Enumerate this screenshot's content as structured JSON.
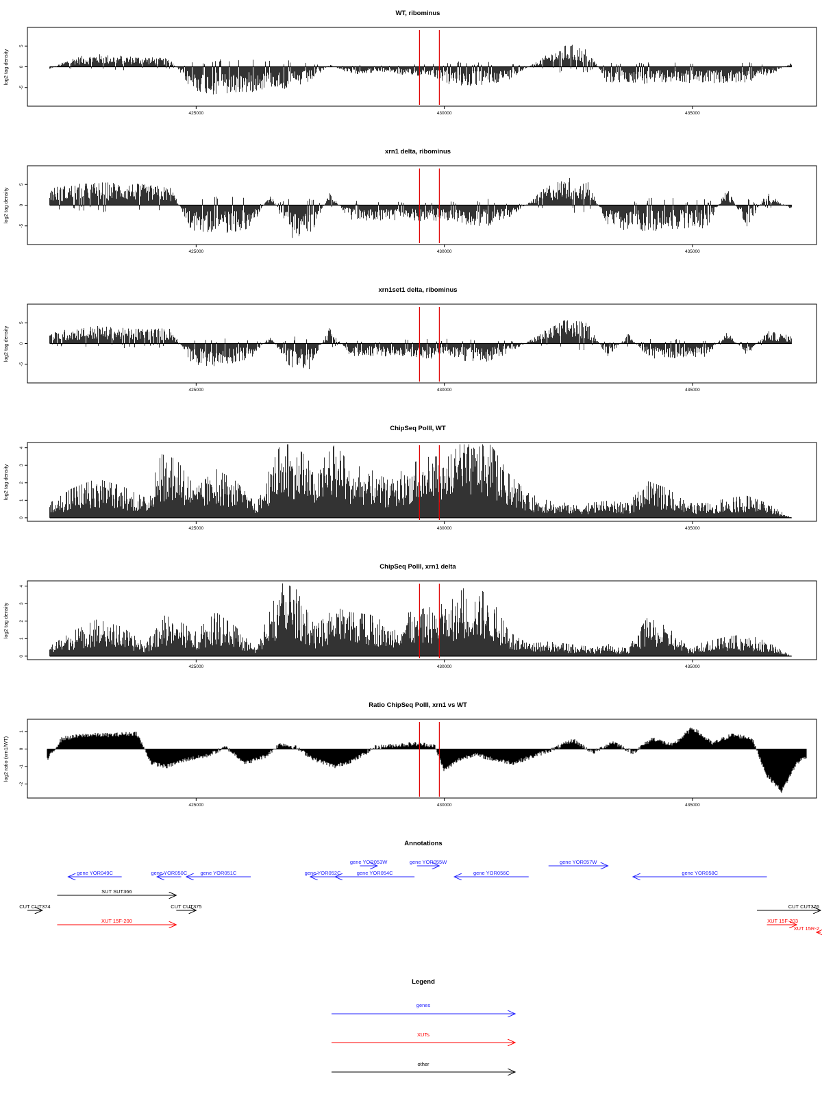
{
  "chart_data": [
    {
      "type": "bar",
      "title": "WT, ribominus",
      "ylabel": "log2 tag density",
      "ylim": [
        -9.5,
        9.5
      ],
      "yticks": [
        -5,
        0,
        5
      ],
      "xlim": [
        421600,
        437500
      ],
      "xticks": [
        425000,
        430000,
        435000
      ],
      "x_tick_labels": [
        "425000",
        "430000",
        "435000"
      ],
      "markers_x": [
        429500,
        429900
      ],
      "marker_color": "#e00000",
      "series": [
        {
          "x": [
            422050,
            422500,
            423000,
            423500,
            424000,
            424500,
            424900,
            425300,
            425700,
            426100,
            426500,
            426900,
            427300,
            427700,
            428100,
            428500,
            428900,
            429300,
            429700,
            430100,
            430500,
            430900,
            431300,
            431700,
            432100,
            432500,
            432900,
            433300,
            433700,
            434100,
            434500,
            434900,
            435300,
            435700,
            436100,
            436500,
            437000
          ],
          "values": [
            -0.5,
            1.8,
            2.5,
            2.2,
            2.0,
            1.5,
            -4.5,
            -5.5,
            -5.5,
            -5.0,
            -4.0,
            -4.5,
            -3.0,
            0.5,
            -1.5,
            -1.2,
            -1.0,
            -2.0,
            -1.5,
            -3.5,
            -4.0,
            -3.5,
            -2.5,
            0.0,
            2.5,
            4.5,
            3.5,
            -3.5,
            -3.0,
            -3.5,
            -3.0,
            -3.2,
            -3.0,
            -3.5,
            -3.0,
            -2.0,
            0.8
          ]
        }
      ]
    },
    {
      "type": "bar",
      "title": "xrn1 delta, ribominus",
      "ylabel": "log2 tag density",
      "ylim": [
        -9.5,
        9.5
      ],
      "yticks": [
        -5,
        0,
        5
      ],
      "xlim": [
        421600,
        437500
      ],
      "xticks": [
        425000,
        430000,
        435000
      ],
      "x_tick_labels": [
        "425000",
        "430000",
        "435000"
      ],
      "markers_x": [
        429500,
        429900
      ],
      "marker_color": "#e00000",
      "series": [
        {
          "x": [
            422050,
            422500,
            423000,
            423500,
            424000,
            424500,
            424900,
            425300,
            425700,
            426100,
            426500,
            426900,
            427300,
            427700,
            428100,
            428500,
            428900,
            429300,
            429700,
            430100,
            430500,
            430900,
            431300,
            431700,
            432100,
            432500,
            432900,
            433300,
            433700,
            434100,
            434500,
            434900,
            435300,
            435700,
            436100,
            436500,
            437000
          ],
          "values": [
            3.5,
            4.0,
            4.5,
            4.5,
            4.0,
            3.5,
            -5.0,
            -5.5,
            -5.5,
            -4.5,
            2.5,
            -6.5,
            -6.0,
            2.5,
            -3.0,
            -3.0,
            -3.0,
            -3.0,
            -3.2,
            -3.0,
            -4.0,
            -4.0,
            -2.5,
            0.5,
            4.0,
            5.5,
            4.5,
            -4.5,
            -5.0,
            -5.0,
            -5.0,
            -4.5,
            -4.5,
            3.5,
            -4.5,
            2.5,
            -1.0
          ]
        }
      ]
    },
    {
      "type": "bar",
      "title": "xrn1set1 delta, ribominus",
      "ylabel": "log2 tag density",
      "ylim": [
        -9.5,
        9.5
      ],
      "yticks": [
        -5,
        0,
        5
      ],
      "xlim": [
        421600,
        437500
      ],
      "xticks": [
        425000,
        430000,
        435000
      ],
      "x_tick_labels": [
        "425000",
        "430000",
        "435000"
      ],
      "markers_x": [
        429500,
        429900
      ],
      "marker_color": "#e00000",
      "series": [
        {
          "x": [
            422050,
            422500,
            423000,
            423500,
            424000,
            424500,
            424900,
            425300,
            425700,
            426100,
            426500,
            426900,
            427300,
            427700,
            428100,
            428500,
            428900,
            429300,
            429700,
            430100,
            430500,
            430900,
            431300,
            431700,
            432100,
            432500,
            432900,
            433300,
            433700,
            434100,
            434500,
            434900,
            435300,
            435700,
            436100,
            436500,
            437000
          ],
          "values": [
            2.0,
            3.0,
            3.5,
            3.0,
            3.0,
            3.0,
            -4.0,
            -4.5,
            -4.0,
            -3.0,
            1.5,
            -5.0,
            -5.0,
            3.5,
            -2.5,
            -2.5,
            -2.5,
            -2.5,
            -3.0,
            -3.0,
            -3.5,
            -3.5,
            -2.0,
            0.5,
            3.0,
            5.0,
            4.0,
            -3.0,
            2.0,
            -3.0,
            -3.0,
            -3.0,
            -2.5,
            2.5,
            -2.5,
            2.5,
            1.5
          ]
        }
      ]
    },
    {
      "type": "bar",
      "title": "ChipSeq PolII, WT",
      "ylabel": "log2 tag density",
      "ylim": [
        -0.2,
        4.3
      ],
      "yticks": [
        0,
        1,
        2,
        3,
        4
      ],
      "xlim": [
        421600,
        437500
      ],
      "xticks": [
        425000,
        430000,
        435000
      ],
      "x_tick_labels": [
        "425000",
        "430000",
        "435000"
      ],
      "markers_x": [
        429500,
        429900
      ],
      "marker_color": "#e00000",
      "series": [
        {
          "x": [
            422050,
            422500,
            423000,
            423500,
            424000,
            424300,
            424600,
            425000,
            425400,
            425800,
            426200,
            426700,
            427000,
            427400,
            427800,
            428100,
            428500,
            428900,
            429300,
            429700,
            430100,
            430400,
            430700,
            431000,
            431300,
            431700,
            432100,
            432500,
            432900,
            433300,
            433700,
            434100,
            434500,
            434900,
            435300,
            435700,
            436100,
            436500,
            437000
          ],
          "values": [
            0.6,
            1.2,
            1.6,
            1.3,
            0.8,
            2.6,
            2.4,
            1.2,
            2.0,
            1.5,
            0.6,
            3.0,
            3.0,
            2.0,
            3.0,
            2.2,
            2.0,
            1.5,
            2.2,
            2.5,
            2.5,
            3.2,
            3.5,
            2.8,
            1.8,
            1.0,
            0.7,
            0.6,
            0.6,
            0.7,
            0.6,
            1.5,
            1.2,
            0.6,
            0.6,
            0.8,
            0.9,
            0.6,
            0.0
          ]
        }
      ]
    },
    {
      "type": "bar",
      "title": "ChipSeq PolII, xrn1 delta",
      "ylabel": "log2 tag density",
      "ylim": [
        -0.2,
        4.3
      ],
      "yticks": [
        0,
        1,
        2,
        3,
        4
      ],
      "xlim": [
        421600,
        437500
      ],
      "xticks": [
        425000,
        430000,
        435000
      ],
      "x_tick_labels": [
        "425000",
        "430000",
        "435000"
      ],
      "markers_x": [
        429500,
        429900
      ],
      "marker_color": "#e00000",
      "series": [
        {
          "x": [
            422050,
            422500,
            423000,
            423500,
            424000,
            424300,
            424600,
            425000,
            425400,
            425800,
            426200,
            426700,
            427000,
            427400,
            427800,
            428100,
            428500,
            428900,
            429300,
            429700,
            430100,
            430400,
            430700,
            431000,
            431300,
            431700,
            432100,
            432500,
            432900,
            433300,
            433700,
            434100,
            434500,
            434900,
            435300,
            435700,
            436100,
            436500,
            437000
          ],
          "values": [
            0.4,
            1.0,
            1.5,
            1.2,
            0.5,
            1.7,
            1.5,
            1.0,
            1.8,
            1.2,
            0.3,
            3.0,
            2.8,
            1.2,
            2.0,
            1.8,
            1.7,
            1.3,
            1.8,
            2.0,
            2.2,
            2.8,
            2.8,
            2.2,
            1.0,
            0.5,
            0.6,
            0.5,
            0.4,
            0.5,
            0.3,
            1.6,
            1.2,
            0.4,
            0.6,
            0.8,
            0.9,
            0.6,
            0.0
          ]
        }
      ]
    },
    {
      "type": "area",
      "title": "Ratio ChipSeq PolII, xrn1 vs WT",
      "ylabel": "log2 ratio (xrn1/WT)",
      "ylim": [
        -2.8,
        1.7
      ],
      "yticks": [
        -2,
        -1,
        0,
        1
      ],
      "xlim": [
        421600,
        437500
      ],
      "xticks": [
        425000,
        430000,
        435000
      ],
      "x_tick_labels": [
        "425000",
        "430000",
        "435000"
      ],
      "markers_x": [
        429500,
        429900
      ],
      "marker_color": "#e00000",
      "series": [
        {
          "x": [
            422000,
            422300,
            422800,
            423300,
            423800,
            424100,
            424400,
            424800,
            425200,
            425600,
            426000,
            426400,
            426700,
            427000,
            427400,
            427800,
            428200,
            428600,
            429000,
            429400,
            429800,
            430000,
            430300,
            430600,
            431000,
            431400,
            431800,
            432200,
            432600,
            433000,
            433400,
            433800,
            434200,
            434600,
            435000,
            435400,
            435800,
            436200,
            436500,
            436800,
            437100,
            437300
          ],
          "values": [
            -0.6,
            0.6,
            0.8,
            0.8,
            0.9,
            -0.8,
            -1.0,
            -0.6,
            -0.4,
            0.1,
            -0.8,
            -0.4,
            0.3,
            0.1,
            -0.6,
            -1.0,
            -0.6,
            0.1,
            0.2,
            0.3,
            0.2,
            -1.2,
            -0.6,
            -0.3,
            -0.6,
            -0.8,
            -0.4,
            0.0,
            0.5,
            -0.2,
            0.4,
            -0.2,
            0.6,
            0.2,
            1.2,
            0.3,
            0.8,
            0.6,
            -1.5,
            -2.4,
            -0.8,
            -0.4
          ]
        }
      ]
    },
    {
      "type": "annotation",
      "title": "Annotations",
      "features": [
        {
          "label": "gene YOR049C",
          "start": 423500,
          "end": 422420,
          "lane": 0,
          "kind": "gene"
        },
        {
          "label": "gene YOR050C",
          "start": 424700,
          "end": 424210,
          "lane": 0,
          "kind": "gene"
        },
        {
          "label": "gene YOR051C",
          "start": 426100,
          "end": 424800,
          "lane": 0,
          "kind": "gene"
        },
        {
          "label": "gene YOR052C",
          "start": 427800,
          "end": 427300,
          "lane": 0,
          "kind": "gene"
        },
        {
          "label": "gene YOR053W",
          "start": 428300,
          "end": 428650,
          "lane": 1,
          "kind": "gene"
        },
        {
          "label": "gene YOR054C",
          "start": 429400,
          "end": 427800,
          "lane": 0,
          "kind": "gene"
        },
        {
          "label": "gene YOR055W",
          "start": 429450,
          "end": 429900,
          "lane": 1,
          "kind": "gene"
        },
        {
          "label": "gene YOR056C",
          "start": 431700,
          "end": 430200,
          "lane": 0,
          "kind": "gene"
        },
        {
          "label": "gene YOR057W",
          "start": 432100,
          "end": 433300,
          "lane": 1,
          "kind": "gene"
        },
        {
          "label": "gene YOR058C",
          "start": 436500,
          "end": 433800,
          "lane": 0,
          "kind": "gene"
        },
        {
          "label": "SUT SUT366",
          "start": 422200,
          "end": 424600,
          "lane": 2,
          "kind": "other"
        },
        {
          "label": "CUT CUT374",
          "start": 421600,
          "end": 421900,
          "lane": 3,
          "kind": "other"
        },
        {
          "label": "CUT CUT375",
          "start": 424600,
          "end": 425000,
          "lane": 3,
          "kind": "other"
        },
        {
          "label": "CUT CUT376",
          "start": 436300,
          "end": 437950,
          "lane": 3,
          "kind": "other"
        },
        {
          "label": "XUT 15F-200",
          "start": 422200,
          "end": 424600,
          "lane": 4,
          "kind": "xut"
        },
        {
          "label": "XUT 15F-203",
          "start": 436500,
          "end": 437100,
          "lane": 4,
          "kind": "xut"
        },
        {
          "label": "XUT 15R-2",
          "start": 438200,
          "end": 437500,
          "lane": 5,
          "kind": "xut"
        }
      ]
    }
  ],
  "colors": {
    "gene": "#2020ff",
    "xut": "#ff0000",
    "other": "#000000",
    "marker": "#e00000"
  },
  "legend": {
    "title": "Legend",
    "items": [
      {
        "label": "genes",
        "kind": "gene"
      },
      {
        "label": "XUTs",
        "kind": "xut"
      },
      {
        "label": "other",
        "kind": "other"
      }
    ]
  }
}
